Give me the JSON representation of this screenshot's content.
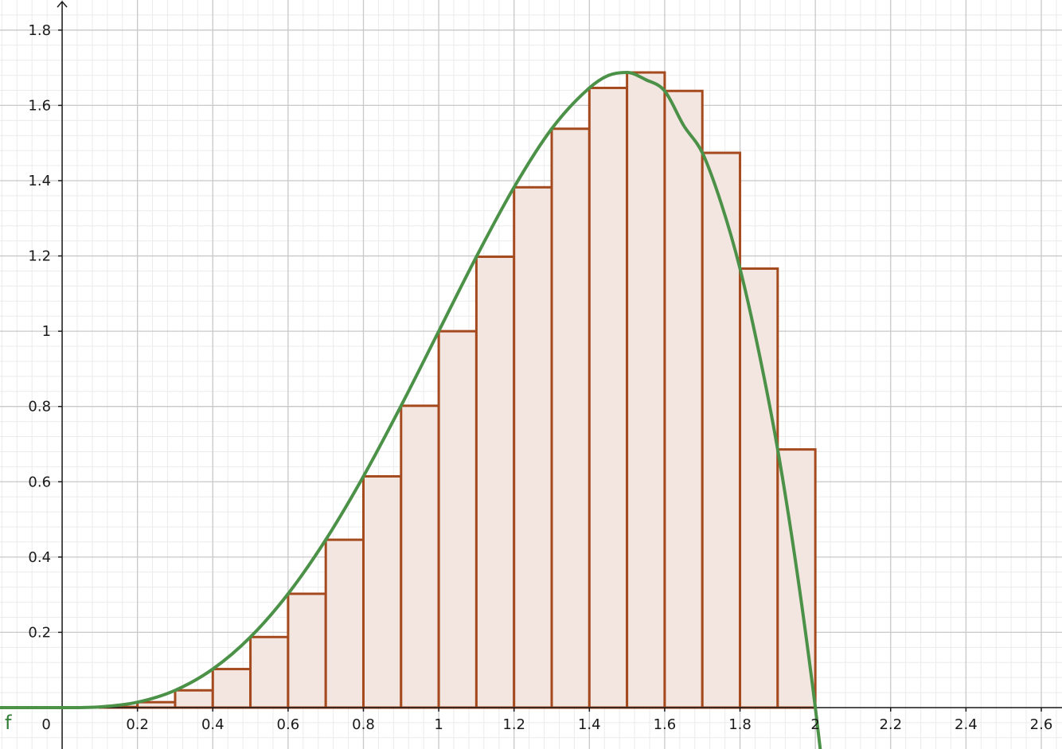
{
  "colors": {
    "curve": "#4b9147",
    "bar_stroke": "#a54a1e",
    "bar_fill": "#f3e6e1",
    "minor_grid": "#ebebeb",
    "major_grid": "#c8c8c8",
    "axis": "#1a1a1a",
    "function_label": "#2e7d32"
  },
  "chart_data": {
    "type": "bar",
    "title": "",
    "xlabel": "",
    "ylabel": "",
    "xlim": [
      -0.165,
      2.655
    ],
    "ylim": [
      -0.11,
      1.88
    ],
    "grid": true,
    "x_tick_labels": [
      "0",
      "0.2",
      "0.4",
      "0.6",
      "0.8",
      "1",
      "1.2",
      "1.4",
      "1.6",
      "1.8",
      "2",
      "2.2",
      "2.4",
      "2.6"
    ],
    "y_tick_labels": [
      "0.2",
      "0.4",
      "0.6",
      "0.8",
      "1",
      "1.2",
      "1.4",
      "1.6",
      "1.8"
    ],
    "function_label": "f",
    "curve_samples": {
      "x": [
        -0.165,
        0,
        0.1,
        0.2,
        0.3,
        0.4,
        0.5,
        0.6,
        0.7,
        0.8,
        0.9,
        1.0,
        1.1,
        1.2,
        1.3,
        1.4,
        1.45,
        1.5,
        1.55,
        1.6,
        1.65,
        1.7,
        1.75,
        1.8,
        1.85,
        1.9,
        1.95,
        2.0,
        2.02
      ],
      "y": [
        0,
        0,
        0.0019,
        0.0144,
        0.0459,
        0.1024,
        0.1875,
        0.3024,
        0.4459,
        0.6144,
        0.8019,
        1.0,
        1.1979,
        1.3824,
        1.5379,
        1.6464,
        1.6794,
        1.6875,
        1.6682,
        1.6384,
        1.5472,
        1.4739,
        1.3398,
        1.1664,
        0.9451,
        0.6859,
        0.3705,
        0,
        -0.17
      ]
    },
    "bars": {
      "x_left": [
        0.1,
        0.2,
        0.3,
        0.4,
        0.5,
        0.6,
        0.7,
        0.8,
        0.9,
        1.0,
        1.1,
        1.2,
        1.3,
        1.4,
        1.5,
        1.6,
        1.7,
        1.8,
        1.9
      ],
      "width": 0.1,
      "values": [
        0.0019,
        0.0144,
        0.0459,
        0.1024,
        0.1875,
        0.3024,
        0.4459,
        0.6144,
        0.8019,
        1.0,
        1.1979,
        1.3824,
        1.5379,
        1.6464,
        1.6875,
        1.6384,
        1.4739,
        1.1664,
        0.6859
      ]
    }
  }
}
